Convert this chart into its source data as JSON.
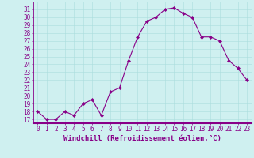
{
  "x": [
    0,
    1,
    2,
    3,
    4,
    5,
    6,
    7,
    8,
    9,
    10,
    11,
    12,
    13,
    14,
    15,
    16,
    17,
    18,
    19,
    20,
    21,
    22,
    23
  ],
  "y": [
    18,
    17,
    17,
    18,
    17.5,
    19,
    19.5,
    17.5,
    20.5,
    21,
    24.5,
    27.5,
    29.5,
    30,
    31,
    31.2,
    30.5,
    30,
    27.5,
    27.5,
    27,
    24.5,
    23.5,
    22
  ],
  "line_color": "#880088",
  "marker": "D",
  "markersize": 2,
  "linewidth": 0.8,
  "bg_color": "#cff0f0",
  "grid_color": "#aadddd",
  "xlabel": "Windchill (Refroidissement éolien,°C)",
  "xlabel_fontsize": 6.5,
  "tick_fontsize": 5.5,
  "ylim": [
    16.5,
    32
  ],
  "yticks": [
    17,
    18,
    19,
    20,
    21,
    22,
    23,
    24,
    25,
    26,
    27,
    28,
    29,
    30,
    31
  ],
  "xlim": [
    -0.5,
    23.5
  ],
  "xticks": [
    0,
    1,
    2,
    3,
    4,
    5,
    6,
    7,
    8,
    9,
    10,
    11,
    12,
    13,
    14,
    15,
    16,
    17,
    18,
    19,
    20,
    21,
    22,
    23
  ]
}
